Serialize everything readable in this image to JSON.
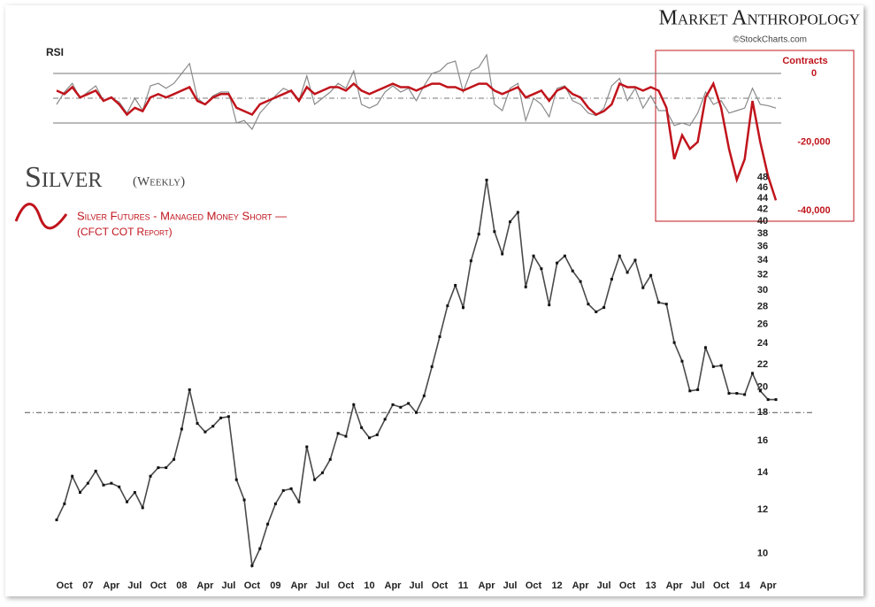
{
  "header": {
    "title": "Market Anthropology",
    "source": "©StockCharts.com"
  },
  "chart_data": [
    {
      "type": "line",
      "label": "RSI",
      "x": [
        "2006-09",
        "2006-10",
        "2006-11",
        "2006-12",
        "2007-01",
        "2007-02",
        "2007-03",
        "2007-04",
        "2007-05",
        "2007-06",
        "2007-07",
        "2007-08",
        "2007-09",
        "2007-10",
        "2007-11",
        "2007-12",
        "2008-01",
        "2008-02",
        "2008-03",
        "2008-04",
        "2008-05",
        "2008-06",
        "2008-07",
        "2008-08",
        "2008-09",
        "2008-10",
        "2008-11",
        "2008-12",
        "2009-01",
        "2009-02",
        "2009-03",
        "2009-04",
        "2009-05",
        "2009-06",
        "2009-07",
        "2009-08",
        "2009-09",
        "2009-10",
        "2009-11",
        "2009-12",
        "2010-01",
        "2010-02",
        "2010-03",
        "2010-04",
        "2010-05",
        "2010-06",
        "2010-07",
        "2010-08",
        "2010-09",
        "2010-10",
        "2010-11",
        "2010-12",
        "2011-01",
        "2011-02",
        "2011-03",
        "2011-04",
        "2011-05",
        "2011-06",
        "2011-07",
        "2011-08",
        "2011-09",
        "2011-10",
        "2011-11",
        "2011-12",
        "2012-01",
        "2012-02",
        "2012-03",
        "2012-04",
        "2012-05",
        "2012-06",
        "2012-07",
        "2012-08",
        "2012-09",
        "2012-10",
        "2012-11",
        "2012-12",
        "2013-01",
        "2013-02",
        "2013-03",
        "2013-04",
        "2013-05",
        "2013-06",
        "2013-07",
        "2013-08",
        "2013-09",
        "2013-10",
        "2013-11",
        "2013-12",
        "2014-01",
        "2014-02",
        "2014-03",
        "2014-04",
        "2014-05"
      ],
      "ylim": [
        20,
        90
      ],
      "reference_lines": [
        30,
        50,
        70
      ],
      "y2_title": "Contracts",
      "y2lim": [
        -40000,
        0
      ],
      "y2ticks": [
        0,
        {
          "value": -20000,
          "label": "-20,000"
        },
        {
          "value": -40000,
          "label": "-40,000"
        }
      ],
      "series": [
        {
          "name": "RSI",
          "color": "#8a8a8a",
          "values": [
            45,
            55,
            62,
            50,
            55,
            60,
            48,
            50,
            47,
            38,
            50,
            40,
            60,
            62,
            58,
            62,
            70,
            78,
            50,
            45,
            52,
            55,
            55,
            30,
            32,
            25,
            38,
            45,
            52,
            58,
            55,
            48,
            68,
            45,
            50,
            55,
            62,
            58,
            72,
            45,
            42,
            45,
            55,
            60,
            55,
            58,
            48,
            60,
            70,
            72,
            78,
            80,
            55,
            72,
            75,
            85,
            45,
            40,
            58,
            62,
            32,
            50,
            45,
            35,
            58,
            60,
            48,
            45,
            38,
            36,
            42,
            60,
            66,
            48,
            58,
            42,
            52,
            40,
            40,
            28,
            30,
            28,
            38,
            55,
            45,
            48,
            38,
            40,
            42,
            58,
            45,
            44,
            42
          ]
        },
        {
          "name": "Silver Futures - Managed Money Short —",
          "color": "#c0141c",
          "axis": "y2",
          "values": [
            -5000,
            -6000,
            -4000,
            -7000,
            -6000,
            -5000,
            -8000,
            -7000,
            -9000,
            -12000,
            -10000,
            -11000,
            -7000,
            -6000,
            -7000,
            -6000,
            -5000,
            -4000,
            -8000,
            -9000,
            -7000,
            -6000,
            -6000,
            -10000,
            -11000,
            -12000,
            -9000,
            -8000,
            -7000,
            -6000,
            -5000,
            -8000,
            -4000,
            -6000,
            -5000,
            -4000,
            -4000,
            -5000,
            -3000,
            -5000,
            -6000,
            -5000,
            -4000,
            -3000,
            -4000,
            -4000,
            -5000,
            -4000,
            -3000,
            -3000,
            -4000,
            -4000,
            -5000,
            -4000,
            -3000,
            -3000,
            -5000,
            -6000,
            -5000,
            -4000,
            -7000,
            -6000,
            -5000,
            -8000,
            -5000,
            -4000,
            -6000,
            -7000,
            -10000,
            -12000,
            -11000,
            -9000,
            -3000,
            -4000,
            -4000,
            -5000,
            -4000,
            -5000,
            -10000,
            -25000,
            -18000,
            -22000,
            -20000,
            -7000,
            -3000,
            -10000,
            -22000,
            -31000,
            -25000,
            -8000,
            -20000,
            -30000,
            -37000
          ]
        }
      ],
      "legend_note": "(CFCT COT Report)"
    },
    {
      "type": "line",
      "title": "Silver",
      "subtitle": "(Weekly)",
      "x": [
        "2006-09",
        "2006-10",
        "2006-11",
        "2006-12",
        "2007-01",
        "2007-02",
        "2007-03",
        "2007-04",
        "2007-05",
        "2007-06",
        "2007-07",
        "2007-08",
        "2007-09",
        "2007-10",
        "2007-11",
        "2007-12",
        "2008-01",
        "2008-02",
        "2008-03",
        "2008-04",
        "2008-05",
        "2008-06",
        "2008-07",
        "2008-08",
        "2008-09",
        "2008-10",
        "2008-11",
        "2008-12",
        "2009-01",
        "2009-02",
        "2009-03",
        "2009-04",
        "2009-05",
        "2009-06",
        "2009-07",
        "2009-08",
        "2009-09",
        "2009-10",
        "2009-11",
        "2009-12",
        "2010-01",
        "2010-02",
        "2010-03",
        "2010-04",
        "2010-05",
        "2010-06",
        "2010-07",
        "2010-08",
        "2010-09",
        "2010-10",
        "2010-11",
        "2010-12",
        "2011-01",
        "2011-02",
        "2011-03",
        "2011-04",
        "2011-05",
        "2011-06",
        "2011-07",
        "2011-08",
        "2011-09",
        "2011-10",
        "2011-11",
        "2011-12",
        "2012-01",
        "2012-02",
        "2012-03",
        "2012-04",
        "2012-05",
        "2012-06",
        "2012-07",
        "2012-08",
        "2012-09",
        "2012-10",
        "2012-11",
        "2012-12",
        "2013-01",
        "2013-02",
        "2013-03",
        "2013-04",
        "2013-05",
        "2013-06",
        "2013-07",
        "2013-08",
        "2013-09",
        "2013-10",
        "2013-11",
        "2013-12",
        "2014-01",
        "2014-02",
        "2014-03",
        "2014-04",
        "2014-05"
      ],
      "xlim": [
        "2006-09",
        "2014-05"
      ],
      "xticks": [
        {
          "value": "2006-10",
          "label": "Oct"
        },
        {
          "value": "2007-01",
          "label": "07"
        },
        {
          "value": "2007-04",
          "label": "Apr"
        },
        {
          "value": "2007-07",
          "label": "Jul"
        },
        {
          "value": "2007-10",
          "label": "Oct"
        },
        {
          "value": "2008-01",
          "label": "08"
        },
        {
          "value": "2008-04",
          "label": "Apr"
        },
        {
          "value": "2008-07",
          "label": "Jul"
        },
        {
          "value": "2008-10",
          "label": "Oct"
        },
        {
          "value": "2009-01",
          "label": "09"
        },
        {
          "value": "2009-04",
          "label": "Apr"
        },
        {
          "value": "2009-07",
          "label": "Jul"
        },
        {
          "value": "2009-10",
          "label": "Oct"
        },
        {
          "value": "2010-01",
          "label": "10"
        },
        {
          "value": "2010-04",
          "label": "Apr"
        },
        {
          "value": "2010-07",
          "label": "Jul"
        },
        {
          "value": "2010-10",
          "label": "Oct"
        },
        {
          "value": "2011-01",
          "label": "11"
        },
        {
          "value": "2011-04",
          "label": "Apr"
        },
        {
          "value": "2011-07",
          "label": "Jul"
        },
        {
          "value": "2011-10",
          "label": "Oct"
        },
        {
          "value": "2012-01",
          "label": "12"
        },
        {
          "value": "2012-04",
          "label": "Apr"
        },
        {
          "value": "2012-07",
          "label": "Jul"
        },
        {
          "value": "2012-10",
          "label": "Oct"
        },
        {
          "value": "2013-01",
          "label": "13"
        },
        {
          "value": "2013-04",
          "label": "Apr"
        },
        {
          "value": "2013-07",
          "label": "Jul"
        },
        {
          "value": "2013-10",
          "label": "Oct"
        },
        {
          "value": "2014-01",
          "label": "14"
        },
        {
          "value": "2014-04",
          "label": "Apr"
        }
      ],
      "ylim": [
        9.2,
        49
      ],
      "log_scale": true,
      "yticks": [
        10,
        12,
        14,
        16,
        18,
        20,
        22,
        24,
        26,
        28,
        30,
        32,
        34,
        36,
        38,
        40,
        42,
        44,
        46,
        48
      ],
      "reference_line": 18,
      "series": [
        {
          "color": "#4a4a4a",
          "values": [
            11.5,
            12.3,
            13.8,
            12.9,
            13.4,
            14.1,
            13.3,
            13.4,
            13.2,
            12.4,
            12.9,
            12.1,
            13.8,
            14.3,
            14.3,
            14.8,
            16.8,
            19.8,
            17.2,
            16.6,
            17.0,
            17.6,
            17.7,
            13.6,
            12.5,
            9.5,
            10.2,
            11.3,
            12.3,
            13.0,
            13.1,
            12.4,
            15.6,
            13.6,
            14.0,
            14.8,
            16.5,
            16.3,
            18.6,
            16.9,
            16.2,
            16.4,
            17.5,
            18.6,
            18.4,
            18.7,
            18.0,
            19.3,
            21.8,
            24.7,
            28.1,
            30.6,
            27.9,
            33.9,
            37.9,
            47.5,
            38.3,
            34.9,
            39.9,
            41.5,
            30.4,
            34.6,
            32.8,
            28.2,
            33.6,
            34.6,
            32.5,
            31.1,
            28.3,
            27.4,
            27.9,
            31.4,
            34.6,
            32.3,
            34.0,
            30.3,
            31.9,
            28.5,
            28.3,
            24.1,
            22.3,
            19.7,
            19.8,
            23.6,
            21.8,
            21.9,
            19.5,
            19.5,
            19.4,
            21.2,
            19.7,
            19.0,
            19.0
          ]
        }
      ]
    }
  ]
}
